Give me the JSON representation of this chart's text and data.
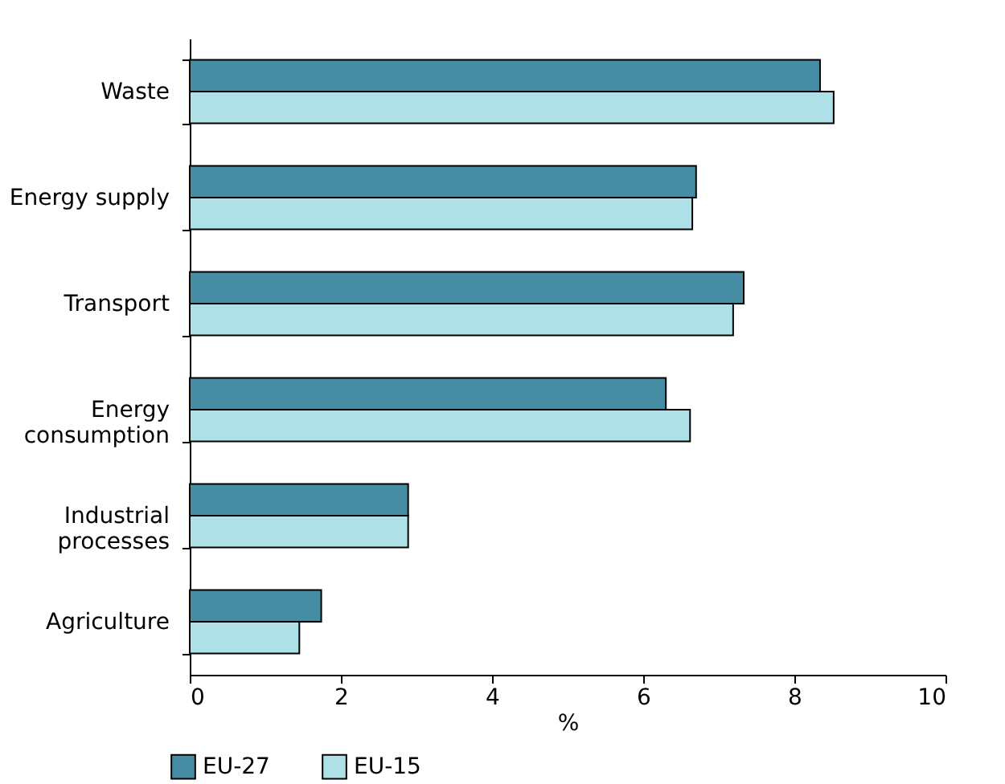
{
  "chart_data": {
    "type": "bar",
    "orientation": "horizontal",
    "xlabel": "%",
    "categories": [
      "Waste",
      "Energy supply",
      "Transport",
      "Energy consumption",
      "Industrial processes",
      "Agriculture"
    ],
    "series": [
      {
        "name": "EU-27",
        "color": "#468ca3",
        "values": [
          8.34,
          6.7,
          7.33,
          6.3,
          2.89,
          1.74
        ]
      },
      {
        "name": "EU-15",
        "color": "#aee0e8",
        "values": [
          8.52,
          6.65,
          7.19,
          6.62,
          2.89,
          1.45
        ]
      }
    ],
    "xlim": [
      0,
      10
    ],
    "xticks": [
      0,
      2,
      4,
      6,
      8,
      10
    ],
    "grid": false,
    "legend": "bottom"
  }
}
